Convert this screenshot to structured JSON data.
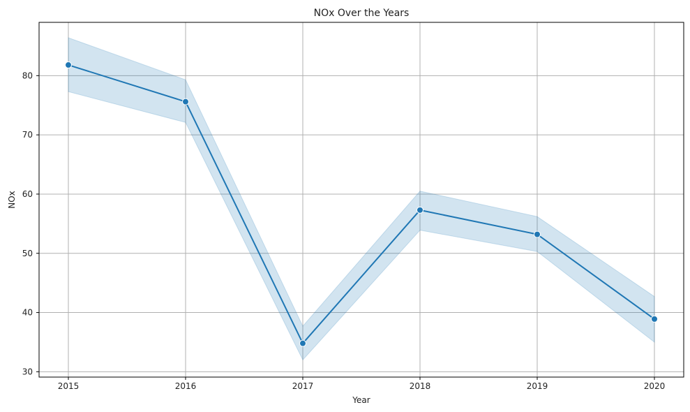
{
  "chart_data": {
    "type": "line",
    "title": "NOx Over the Years",
    "xlabel": "Year",
    "ylabel": "NOx",
    "x": [
      2015,
      2016,
      2017,
      2018,
      2019,
      2020
    ],
    "x_tick_labels": [
      "2015",
      "2016",
      "2017",
      "2018",
      "2019",
      "2020"
    ],
    "y_ticks": [
      30,
      40,
      50,
      60,
      70,
      80
    ],
    "y_tick_labels": [
      "30",
      "40",
      "50",
      "60",
      "70",
      "80"
    ],
    "xlim": [
      2014.75,
      2020.25
    ],
    "ylim": [
      29.1,
      89.0
    ],
    "grid": true,
    "series": [
      {
        "name": "NOx",
        "values": [
          81.8,
          75.6,
          34.8,
          57.3,
          53.2,
          38.9
        ],
        "ci_lower": [
          77.3,
          72.1,
          32.0,
          53.9,
          50.3,
          35.0
        ],
        "ci_upper": [
          86.4,
          79.3,
          37.7,
          60.5,
          56.2,
          42.7
        ]
      }
    ],
    "colors": {
      "line": "#1f77b4",
      "band": "#1f77b4",
      "marker_edge": "#ffffff"
    }
  }
}
